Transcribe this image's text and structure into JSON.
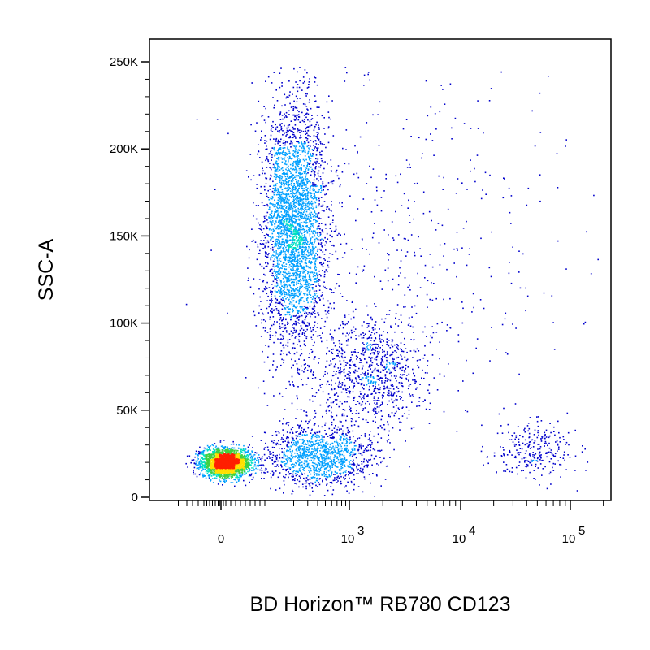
{
  "chart_data": {
    "type": "scatter",
    "title": "",
    "xlabel": "BD Horizon™ RB780 CD123",
    "ylabel": "SSC-A",
    "x_scale": "biexponential",
    "y_scale": "linear",
    "xlim": [
      -200,
      200000
    ],
    "ylim": [
      0,
      262144
    ],
    "x_ticks": [
      {
        "value": 0,
        "label": "0"
      },
      {
        "value": 1000,
        "label": "10",
        "exponent": "3"
      },
      {
        "value": 10000,
        "label": "10",
        "exponent": "4"
      },
      {
        "value": 100000,
        "label": "10",
        "exponent": "5"
      }
    ],
    "y_ticks": [
      {
        "value": 0,
        "label": "0"
      },
      {
        "value": 50000,
        "label": "50K"
      },
      {
        "value": 100000,
        "label": "100K"
      },
      {
        "value": 150000,
        "label": "150K"
      },
      {
        "value": 200000,
        "label": "200K"
      },
      {
        "value": 250000,
        "label": "250K"
      }
    ],
    "color_scheme": "density (blue → cyan → green → yellow → red)",
    "density_colors": [
      "#0000cc",
      "#00a0ff",
      "#00e0c0",
      "#40d040",
      "#ffe000",
      "#ff2000"
    ],
    "populations": [
      {
        "name": "",
        "x_center": 10,
        "y_center": 20000,
        "x_spread": 25,
        "y_spread": 4000,
        "weight": 0.3
      },
      {
        "name": "",
        "x_center": 200,
        "y_center": 155000,
        "x_spread": 120,
        "y_spread": 35000,
        "weight": 0.38
      },
      {
        "name": "",
        "x_center": 1500,
        "y_center": 72000,
        "x_spread": 1200,
        "y_spread": 15000,
        "weight": 0.1
      },
      {
        "name": "",
        "x_center": 400,
        "y_center": 24000,
        "x_spread": 500,
        "y_spread": 9000,
        "weight": 0.14
      },
      {
        "name": "",
        "x_center": 45000,
        "y_center": 28000,
        "x_spread": 25000,
        "y_spread": 8000,
        "weight": 0.03
      },
      {
        "name": "",
        "x_center": 3000,
        "y_center": 150000,
        "x_spread": 5000,
        "y_spread": 60000,
        "weight": 0.05
      }
    ],
    "grid": false,
    "legend": "none"
  }
}
